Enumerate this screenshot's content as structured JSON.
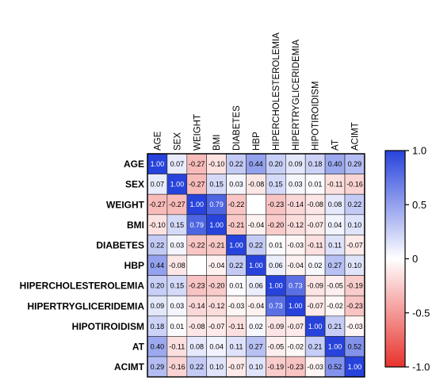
{
  "chart_data": {
    "type": "heatmap",
    "title": "",
    "xlabel": "",
    "ylabel": "",
    "variables": [
      "AGE",
      "SEX",
      "WEIGHT",
      "BMI",
      "DIABETES",
      "HBP",
      "HIPERCHOLESTEROLEMIA",
      "HIPERTRYGLICERIDEMIA",
      "HIPOTIROIDISM",
      "AT",
      "ACIMT"
    ],
    "values": [
      [
        1.0,
        0.07,
        -0.27,
        -0.1,
        0.22,
        0.44,
        0.2,
        0.09,
        0.18,
        0.4,
        0.29
      ],
      [
        0.07,
        1.0,
        -0.27,
        0.15,
        0.03,
        -0.08,
        0.15,
        0.03,
        0.01,
        -0.11,
        -0.16
      ],
      [
        -0.27,
        -0.27,
        1.0,
        0.79,
        -0.22,
        null,
        -0.23,
        -0.14,
        -0.08,
        0.08,
        0.22
      ],
      [
        -0.1,
        0.15,
        0.79,
        1.0,
        -0.21,
        -0.04,
        -0.2,
        -0.12,
        -0.07,
        0.04,
        0.1
      ],
      [
        0.22,
        0.03,
        -0.22,
        -0.21,
        1.0,
        0.22,
        0.01,
        -0.03,
        -0.11,
        0.11,
        -0.07
      ],
      [
        0.44,
        -0.08,
        null,
        -0.04,
        0.22,
        1.0,
        0.06,
        -0.04,
        0.02,
        0.27,
        0.1
      ],
      [
        0.2,
        0.15,
        -0.23,
        -0.2,
        0.01,
        0.06,
        1.0,
        0.73,
        -0.09,
        -0.05,
        -0.19
      ],
      [
        0.09,
        0.03,
        -0.14,
        -0.12,
        -0.03,
        -0.04,
        0.73,
        1.0,
        -0.07,
        -0.02,
        -0.23
      ],
      [
        0.18,
        0.01,
        -0.08,
        -0.07,
        -0.11,
        0.02,
        -0.09,
        -0.07,
        1.0,
        0.21,
        -0.03
      ],
      [
        0.4,
        -0.11,
        0.08,
        0.04,
        0.11,
        0.27,
        -0.05,
        -0.02,
        0.21,
        1.0,
        0.52
      ],
      [
        0.29,
        -0.16,
        0.22,
        0.1,
        -0.07,
        0.1,
        -0.19,
        -0.23,
        -0.03,
        0.52,
        1.0
      ]
    ],
    "colorbar": {
      "min": -1.0,
      "max": 1.0,
      "ticks": [
        1.0,
        0.5,
        0,
        -0.5,
        -1.0
      ],
      "tick_labels": [
        "1.0",
        "0.5",
        "0",
        "-0.5",
        "-1.0"
      ],
      "colors": {
        "negative": "#e8322d",
        "zero": "#ffffff",
        "positive": "#2743dc"
      },
      "placement": "right"
    }
  }
}
